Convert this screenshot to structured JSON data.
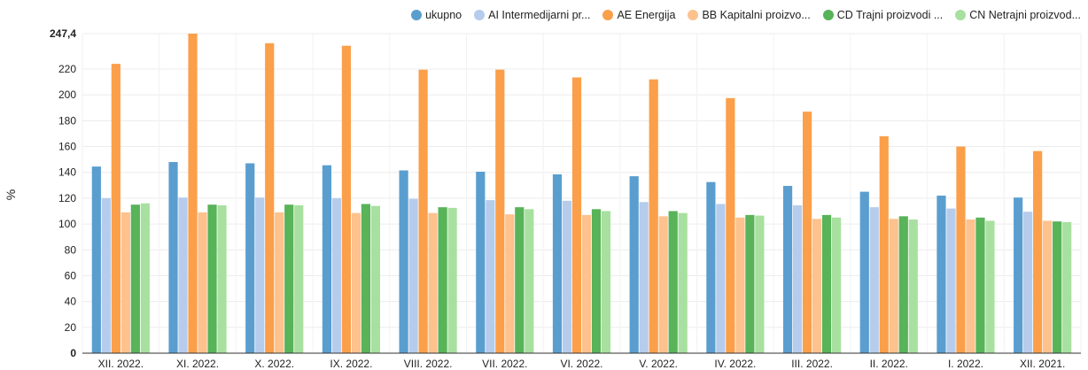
{
  "chart_data": {
    "type": "bar",
    "title": "",
    "xlabel": "",
    "ylabel": "%",
    "ylim": [
      0,
      247.4
    ],
    "ymax_label": "247,4",
    "yticks": [
      0,
      20,
      40,
      60,
      80,
      100,
      120,
      140,
      160,
      180,
      200,
      220
    ],
    "grid": true,
    "legend_position": "top-right",
    "categories": [
      "XII. 2022.",
      "XI. 2022.",
      "X. 2022.",
      "IX. 2022.",
      "VIII. 2022.",
      "VII. 2022.",
      "VI. 2022.",
      "V. 2022.",
      "IV. 2022.",
      "III. 2022.",
      "II. 2022.",
      "I. 2022.",
      "XII. 2021."
    ],
    "series": [
      {
        "name": "ukupno",
        "color": "#5a9ecf",
        "values": [
          144.5,
          148,
          147,
          145.5,
          141.5,
          140.5,
          138.5,
          137,
          132.5,
          129.5,
          125,
          122,
          120.5
        ]
      },
      {
        "name": "AI Intermedijarni pr...",
        "color": "#b6ccec",
        "values": [
          120,
          120.5,
          120.5,
          120,
          119.5,
          118.5,
          118,
          117,
          115.5,
          114.5,
          113,
          112,
          109.5
        ]
      },
      {
        "name": "AE Energija",
        "color": "#fb9f4a",
        "values": [
          224,
          247.4,
          240,
          238,
          219.5,
          219.5,
          213.5,
          212,
          197.5,
          187,
          168,
          160,
          156.5
        ]
      },
      {
        "name": "BB Kapitalni proizvo...",
        "color": "#fdc28d",
        "values": [
          109,
          109,
          109,
          108.5,
          108.5,
          107.5,
          107,
          106,
          105,
          104,
          104,
          103.5,
          102.5
        ]
      },
      {
        "name": "CD Trajni proizvodi ...",
        "color": "#58b359",
        "values": [
          115,
          115,
          115,
          115.5,
          113,
          113,
          111.5,
          110,
          107,
          107,
          106,
          105,
          102
        ]
      },
      {
        "name": "CN Netrajni proizvod...",
        "color": "#a8e0a0",
        "values": [
          116,
          114.5,
          114.5,
          114,
          112.5,
          111.5,
          110,
          108.5,
          106.5,
          105,
          103.5,
          102.5,
          101.5
        ]
      }
    ]
  },
  "legend_icon": "circle-swatch"
}
